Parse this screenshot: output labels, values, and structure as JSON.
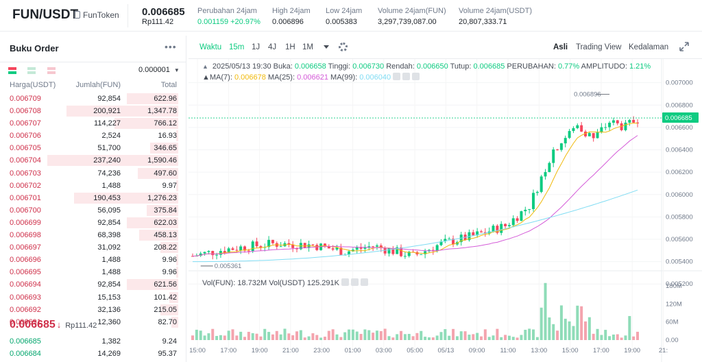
{
  "header": {
    "pair": "FUN/USDT",
    "token_name": "FunToken",
    "last_price": "0.006685",
    "last_price_idr": "Rp111.42",
    "stats": [
      {
        "label": "Perubahan 24jam",
        "value": "0.001159 +20.97%",
        "positive": true
      },
      {
        "label": "High 24jam",
        "value": "0.006896"
      },
      {
        "label": "Low 24jam",
        "value": "0.005383"
      },
      {
        "label": "Volume 24jam(FUN)",
        "value": "3,297,739,087.00"
      },
      {
        "label": "Volume 24jam(USDT)",
        "value": "20,807,333.71"
      }
    ]
  },
  "orderbook": {
    "title": "Buku Order",
    "more_icon": "more-icon",
    "precision": "0.000001",
    "col_price": "Harga(USDT)",
    "col_amount": "Jumlah(FUN)",
    "col_total": "Total",
    "asks": [
      {
        "price": "0.006709",
        "amount": "92,854",
        "total": "622.96",
        "depth": 0.29
      },
      {
        "price": "0.006708",
        "amount": "200,921",
        "total": "1,347.78",
        "depth": 0.63
      },
      {
        "price": "0.006707",
        "amount": "114,227",
        "total": "766.12",
        "depth": 0.36
      },
      {
        "price": "0.006706",
        "amount": "2,524",
        "total": "16.93",
        "depth": 0.01
      },
      {
        "price": "0.006705",
        "amount": "51,700",
        "total": "346.65",
        "depth": 0.16
      },
      {
        "price": "0.006704",
        "amount": "237,240",
        "total": "1,590.46",
        "depth": 0.74
      },
      {
        "price": "0.006703",
        "amount": "74,236",
        "total": "497.60",
        "depth": 0.23
      },
      {
        "price": "0.006702",
        "amount": "1,488",
        "total": "9.97",
        "depth": 0.01
      },
      {
        "price": "0.006701",
        "amount": "190,453",
        "total": "1,276.23",
        "depth": 0.59
      },
      {
        "price": "0.006700",
        "amount": "56,095",
        "total": "375.84",
        "depth": 0.18
      },
      {
        "price": "0.006699",
        "amount": "92,854",
        "total": "622.03",
        "depth": 0.29
      },
      {
        "price": "0.006698",
        "amount": "68,398",
        "total": "458.13",
        "depth": 0.22
      },
      {
        "price": "0.006697",
        "amount": "31,092",
        "total": "208.22",
        "depth": 0.1
      },
      {
        "price": "0.006696",
        "amount": "1,488",
        "total": "9.96",
        "depth": 0.01
      },
      {
        "price": "0.006695",
        "amount": "1,488",
        "total": "9.96",
        "depth": 0.01
      },
      {
        "price": "0.006694",
        "amount": "92,854",
        "total": "621.56",
        "depth": 0.29
      },
      {
        "price": "0.006693",
        "amount": "15,153",
        "total": "101.42",
        "depth": 0.05
      },
      {
        "price": "0.006692",
        "amount": "32,136",
        "total": "215.05",
        "depth": 0.1
      },
      {
        "price": "0.006691",
        "amount": "12,360",
        "total": "82.70",
        "depth": 0.04
      }
    ],
    "mid_price": "0.006685",
    "mid_arrow": "↓",
    "mid_idr": "Rp111.42",
    "bids": [
      {
        "price": "0.006685",
        "amount": "1,382",
        "total": "9.24",
        "depth": 0.0
      },
      {
        "price": "0.006684",
        "amount": "14,269",
        "total": "95.37",
        "depth": 0.0
      }
    ]
  },
  "toolbar": {
    "time_label": "Waktu",
    "intervals": [
      "15m",
      "1J",
      "4J",
      "1H",
      "1M"
    ],
    "active_interval": "15m",
    "views": [
      "Asli",
      "Trading View",
      "Kedalaman"
    ],
    "active_view": "Asli"
  },
  "legend": {
    "datetime": "2025/05/13 19:30",
    "open_label": "Buka:",
    "open": "0.006658",
    "high_label": "Tinggi:",
    "high": "0.006730",
    "low_label": "Rendah:",
    "low": "0.006650",
    "close_label": "Tutup:",
    "close": "0.006685",
    "change_label": "PERUBAHAN:",
    "change": "0.77%",
    "amp_label": "AMPLITUDO:",
    "amp": "1.21%",
    "ma7_label": "MA(7):",
    "ma7": "0.006678",
    "ma25_label": "MA(25):",
    "ma25": "0.006621",
    "ma99_label": "MA(99):",
    "ma99": "0.006040",
    "vol_label": "Vol(FUN):",
    "vol_fun": "18.732M",
    "volusdt_label": "Vol(USDT)",
    "vol_usdt": "125.291K"
  },
  "chart_data": {
    "type": "candlestick",
    "price_axis": [
      "0.007000",
      "0.006800",
      "0.006600",
      "0.006400",
      "0.006200",
      "0.006000",
      "0.005800",
      "0.005600",
      "0.005400",
      "0.005200"
    ],
    "price_range": [
      0.00514,
      0.00709
    ],
    "volume_axis": [
      "180M",
      "120M",
      "60M",
      "0.00"
    ],
    "volume_range": [
      0,
      210
    ],
    "time_axis": [
      "15:00",
      "17:00",
      "19:00",
      "21:00",
      "23:00",
      "01:00",
      "03:00",
      "05:00",
      "05/13",
      "09:00",
      "11:00",
      "13:00",
      "15:00",
      "17:00",
      "19:00",
      "21:"
    ],
    "current_price_label": "0.006685",
    "high_marker": "0.006896",
    "low_marker": "0.005361",
    "colors": {
      "up": "#0ecb81",
      "down": "#f6465d",
      "ma7": "#f0b90b",
      "ma25": "#d45bd8",
      "ma99": "#7fdcf3",
      "price_tag": "#0ecb81"
    }
  }
}
